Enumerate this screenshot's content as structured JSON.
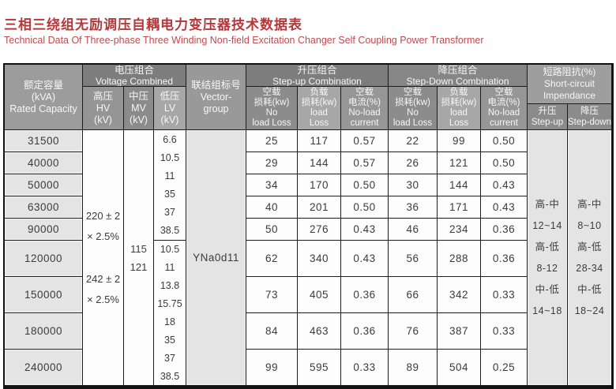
{
  "page": {
    "title_zh": "三相三绕组无励调压自耦电力变压器技术数据表",
    "title_en": "Technical Data Of Three-phase Three Winding Non-field Excitation Changer Self Coupling Power Transformer"
  },
  "colors": {
    "title_red": "#b5383a",
    "header_gray_dark": "#7d7d7d",
    "header_gray_mid": "#959595",
    "header_gray_light": "#a7a7a7",
    "body_cell_gray": "#e4e4e4",
    "border": "#1c1c1c"
  },
  "header": {
    "rated_capacity": {
      "zh": "额定容量",
      "unit": "(kVA)",
      "en": "Rated Capacity"
    },
    "voltage_combined": {
      "zh": "电压组合",
      "en": "Voltage Combined"
    },
    "hv": {
      "zh": "高压",
      "abbr": "HV",
      "unit": "(kV)"
    },
    "mv": {
      "zh": "中压",
      "abbr": "MV",
      "unit": "(kV)"
    },
    "lv": {
      "zh": "低压",
      "abbr": "LV",
      "unit": "(kV)"
    },
    "vector_group": {
      "zh": "联结组标号",
      "en1": "Vector-",
      "en2": "group"
    },
    "step_up": {
      "zh": "升压组合",
      "en": "Step-up Combination"
    },
    "step_down": {
      "zh": "降压组合",
      "en": "Step-Down Combination"
    },
    "no_load_loss": {
      "zh1": "空载",
      "zh2": "损耗(kw)",
      "en1": "No",
      "en2": "load Loss"
    },
    "load_loss": {
      "zh1": "负载",
      "zh2": "损耗(kw)",
      "en1": "load",
      "en2": "Loss"
    },
    "no_load_current": {
      "zh1": "空载",
      "zh2": "电流(%)",
      "en1": "No-load",
      "en2": "current"
    },
    "impedance": {
      "zh": "短路阻抗(%)",
      "en1": "Short-circuit",
      "en2": "Impendance"
    },
    "imp_up": {
      "zh": "升压",
      "en": "Step-up"
    },
    "imp_down": {
      "zh": "降压",
      "en": "Step-down"
    }
  },
  "body": {
    "hv_lines": [
      "220 ± 2",
      "× 2.5%",
      "242 ± 2",
      "× 2.5%"
    ],
    "mv_lines": [
      "115",
      "121"
    ],
    "lv_upper": [
      "6.6",
      "10.5",
      "11",
      "35",
      "37",
      "38.5"
    ],
    "lv_lower": [
      "10.5",
      "11",
      "13.8",
      "15.75",
      "18",
      "35",
      "37",
      "38.5"
    ],
    "vector_value": "YNa0d11",
    "imp_up_lines": [
      "高-中",
      "12~14",
      "高-低",
      "8-12",
      "中-低",
      "14~18"
    ],
    "imp_down_lines": [
      "高-中",
      "8~10",
      "高-低",
      "28-34",
      "中-低",
      "18~24"
    ],
    "rows": [
      {
        "capacity": "31500",
        "su_noload": "25",
        "su_load": "117",
        "su_current": "0.57",
        "sd_noload": "22",
        "sd_load": "99",
        "sd_current": "0.50"
      },
      {
        "capacity": "40000",
        "su_noload": "29",
        "su_load": "144",
        "su_current": "0.57",
        "sd_noload": "26",
        "sd_load": "121",
        "sd_current": "0.50"
      },
      {
        "capacity": "50000",
        "su_noload": "34",
        "su_load": "170",
        "su_current": "0.50",
        "sd_noload": "30",
        "sd_load": "144",
        "sd_current": "0.43"
      },
      {
        "capacity": "63000",
        "su_noload": "40",
        "su_load": "201",
        "su_current": "0.50",
        "sd_noload": "36",
        "sd_load": "171",
        "sd_current": "0.43"
      },
      {
        "capacity": "90000",
        "su_noload": "50",
        "su_load": "276",
        "su_current": "0.43",
        "sd_noload": "46",
        "sd_load": "234",
        "sd_current": "0.36"
      },
      {
        "capacity": "120000",
        "su_noload": "62",
        "su_load": "340",
        "su_current": "0.43",
        "sd_noload": "56",
        "sd_load": "288",
        "sd_current": "0.36"
      },
      {
        "capacity": "150000",
        "su_noload": "73",
        "su_load": "405",
        "su_current": "0.36",
        "sd_noload": "66",
        "sd_load": "342",
        "sd_current": "0.33"
      },
      {
        "capacity": "180000",
        "su_noload": "84",
        "su_load": "463",
        "su_current": "0.36",
        "sd_noload": "76",
        "sd_load": "387",
        "sd_current": "0.33"
      },
      {
        "capacity": "240000",
        "su_noload": "99",
        "su_load": "595",
        "su_current": "0.33",
        "sd_noload": "89",
        "sd_load": "504",
        "sd_current": "0.25"
      }
    ]
  }
}
